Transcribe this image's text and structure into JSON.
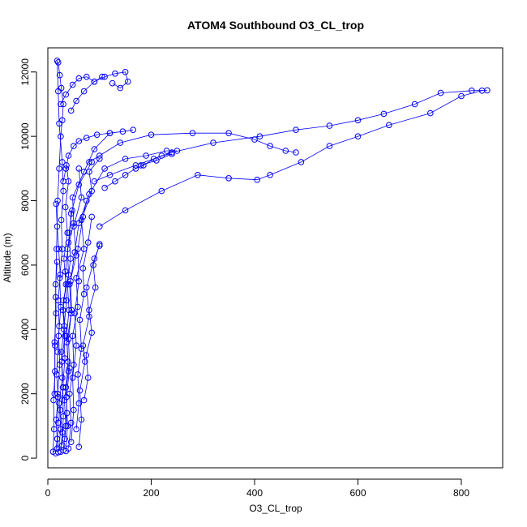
{
  "chart_data": {
    "type": "line",
    "title": "ATOM4 Southbound O3_CL_trop",
    "xlabel": "O3_CL_trop",
    "ylabel": "Altitude (m)",
    "xlim": [
      0,
      880
    ],
    "ylim": [
      -300,
      12750
    ],
    "xticks": [
      0,
      200,
      400,
      600,
      800
    ],
    "yticks": [
      0,
      2000,
      4000,
      6000,
      8000,
      10000,
      12000
    ],
    "grid": false,
    "legend": "none",
    "marker": "open-circle",
    "color": "#0000ff",
    "series": [
      {
        "x": [
          15,
          18,
          16,
          20,
          17,
          19,
          22,
          20,
          24,
          21,
          18,
          16
        ],
        "y": [
          150,
          600,
          1200,
          1900,
          2600,
          3300,
          4100,
          4900,
          5700,
          6500,
          7200,
          7900
        ]
      },
      {
        "x": [
          25,
          28,
          24,
          30,
          27,
          33,
          29,
          35,
          31,
          38,
          34,
          40,
          36
        ],
        "y": [
          200,
          800,
          1500,
          2200,
          3000,
          3800,
          4600,
          5400,
          6200,
          7000,
          7800,
          8600,
          9100
        ]
      },
      {
        "x": [
          30,
          35,
          32,
          40,
          37,
          45,
          42,
          55,
          50,
          65,
          60
        ],
        "y": [
          250,
          1000,
          1800,
          2700,
          3600,
          4500,
          5400,
          6300,
          7200,
          8100,
          9000
        ]
      },
      {
        "x": [
          40,
          45,
          42,
          50,
          48,
          58,
          55,
          70,
          65,
          85,
          80,
          100
        ],
        "y": [
          300,
          1100,
          2000,
          2900,
          3800,
          4700,
          5600,
          6500,
          7400,
          8300,
          8900,
          9300
        ]
      },
      {
        "x": [
          20,
          25,
          22,
          28,
          26,
          32,
          30,
          40,
          38,
          50,
          48,
          70,
          90,
          120
        ],
        "y": [
          180,
          900,
          1700,
          2500,
          3300,
          4100,
          4900,
          5700,
          6500,
          7300,
          8100,
          8900,
          9600,
          10100
        ]
      },
      {
        "x": [
          35,
          38,
          36,
          42,
          40,
          46,
          44,
          52,
          60,
          80,
          110,
          150,
          190,
          230,
          250
        ],
        "y": [
          220,
          1000,
          1900,
          2800,
          3700,
          4600,
          5500,
          6400,
          7300,
          8200,
          9000,
          9300,
          9400,
          9550,
          9550
        ]
      },
      {
        "x": [
          28,
          30,
          29,
          33,
          31,
          36,
          34,
          40,
          45,
          60,
          85
        ],
        "y": [
          400,
          1300,
          2200,
          3100,
          4000,
          4900,
          5800,
          6700,
          7600,
          8500,
          9200
        ]
      },
      {
        "x": [
          45,
          50,
          48,
          55,
          52,
          60,
          58,
          68,
          75
        ],
        "y": [
          500,
          1500,
          2500,
          3500,
          4500,
          5500,
          6500,
          7500,
          8000
        ]
      },
      {
        "x": [
          60,
          65,
          62,
          72,
          68,
          80,
          75,
          90,
          100
        ],
        "y": [
          350,
          1200,
          2100,
          3000,
          3500,
          4400,
          5300,
          6200,
          6600
        ]
      },
      {
        "x": [
          18,
          20,
          19,
          23,
          21,
          25,
          23,
          28,
          26,
          30,
          28,
          22,
          20,
          18
        ],
        "y": [
          300,
          1100,
          2000,
          2900,
          3800,
          4700,
          5600,
          6500,
          7400,
          8300,
          9200,
          10400,
          11400,
          12350
        ]
      },
      {
        "x": [
          30,
          35,
          40,
          50,
          60,
          75,
          95,
          120,
          145,
          165
        ],
        "y": [
          8600,
          9000,
          9400,
          9700,
          9850,
          9950,
          10050,
          10100,
          10150,
          10200
        ]
      },
      {
        "x": [
          80,
          100,
          140,
          200,
          280,
          350,
          400,
          430,
          460,
          480
        ],
        "y": [
          9200,
          9400,
          9800,
          10050,
          10100,
          10100,
          9900,
          9700,
          9550,
          9500
        ]
      },
      {
        "x": [
          90,
          120,
          170,
          240,
          320,
          410,
          480,
          545,
          600,
          650,
          710,
          760,
          820,
          850
        ],
        "y": [
          8600,
          8800,
          9100,
          9500,
          9800,
          10000,
          10200,
          10330,
          10500,
          10700,
          11000,
          11350,
          11420,
          11430
        ]
      },
      {
        "x": [
          100,
          150,
          220,
          290,
          350,
          405,
          430,
          490,
          545,
          600,
          660,
          740,
          800,
          840
        ],
        "y": [
          7200,
          7700,
          8300,
          8800,
          8700,
          8650,
          8800,
          9200,
          9700,
          10000,
          10350,
          10720,
          11250,
          11420
        ]
      },
      {
        "x": [
          45,
          55,
          70,
          90,
          110,
          130,
          150,
          155,
          140,
          125
        ],
        "y": [
          10800,
          11100,
          11400,
          11700,
          11850,
          11950,
          12000,
          11700,
          11500,
          11650
        ]
      },
      {
        "x": [
          25,
          35,
          48,
          60,
          75,
          90,
          105
        ],
        "y": [
          11000,
          11300,
          11600,
          11800,
          11850,
          11700,
          11850
        ]
      },
      {
        "x": [
          20,
          23,
          26,
          30,
          28,
          25,
          22,
          19,
          17,
          15,
          14,
          13
        ],
        "y": [
          12300,
          11900,
          11500,
          11000,
          10500,
          10000,
          9000,
          8000,
          6500,
          5000,
          3500,
          2000
        ]
      },
      {
        "x": [
          33,
          37,
          35,
          39,
          36,
          41,
          38,
          44,
          41,
          47
        ],
        "y": [
          600,
          1400,
          2200,
          3000,
          3800,
          4600,
          5400,
          6200,
          7000,
          7700
        ]
      },
      {
        "x": [
          55,
          60,
          58,
          65,
          62,
          70,
          68,
          78,
          85
        ],
        "y": [
          900,
          1700,
          2600,
          3400,
          4300,
          5100,
          5900,
          6700,
          7500
        ]
      },
      {
        "x": [
          70,
          78,
          74,
          85,
          80,
          92,
          88,
          100
        ],
        "y": [
          1800,
          2500,
          3200,
          3900,
          4600,
          5300,
          6000,
          6650
        ]
      },
      {
        "x": [
          10,
          12,
          11,
          14,
          13,
          16,
          15,
          18
        ],
        "y": [
          200,
          900,
          1800,
          2700,
          3600,
          4500,
          5400,
          6100
        ]
      },
      {
        "x": [
          110,
          130,
          150,
          170,
          185,
          205,
          220,
          240,
          210,
          180
        ],
        "y": [
          8400,
          8600,
          8800,
          9000,
          9100,
          9300,
          9400,
          9450,
          9250,
          9100
        ]
      }
    ]
  }
}
